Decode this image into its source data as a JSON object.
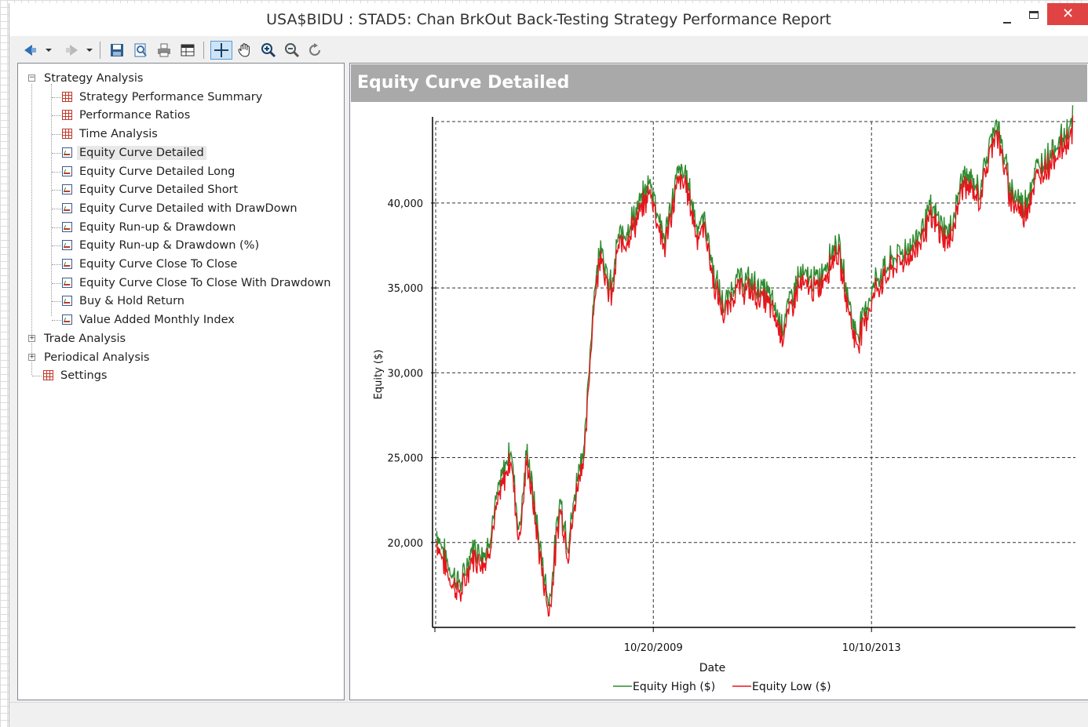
{
  "window": {
    "title": "USA$BIDU : STAD5: Chan BrkOut Back-Testing Strategy Performance Report"
  },
  "toolbar": {
    "icons": [
      "back-icon",
      "dropdown-arrow-icon",
      "forward-icon",
      "dropdown-arrow-icon",
      "save-icon",
      "print-preview-icon",
      "print-icon",
      "table-view-icon",
      "crosshair-icon",
      "pan-hand-icon",
      "zoom-in-icon",
      "zoom-out-icon",
      "reset-zoom-icon"
    ]
  },
  "tree": {
    "root": {
      "label": "Strategy Analysis",
      "expander": "−",
      "children": [
        {
          "label": "Strategy Performance Summary",
          "icon": "table-icon"
        },
        {
          "label": "Performance Ratios",
          "icon": "table-icon"
        },
        {
          "label": "Time Analysis",
          "icon": "table-icon"
        },
        {
          "label": "Equity Curve Detailed",
          "icon": "chart-icon"
        },
        {
          "label": "Equity Curve Detailed Long",
          "icon": "chart-icon"
        },
        {
          "label": "Equity Curve Detailed Short",
          "icon": "chart-icon"
        },
        {
          "label": "Equity Curve Detailed with DrawDown",
          "icon": "chart-icon"
        },
        {
          "label": "Equity Run-up & Drawdown",
          "icon": "chart-icon"
        },
        {
          "label": "Equity Run-up & Drawdown (%)",
          "icon": "chart-icon"
        },
        {
          "label": "Equity Curve Close To Close",
          "icon": "chart-icon"
        },
        {
          "label": "Equity Curve Close To Close With Drawdown",
          "icon": "chart-icon"
        },
        {
          "label": "Buy & Hold Return",
          "icon": "chart-icon"
        },
        {
          "label": "Value Added Monthly Index",
          "icon": "chart-icon"
        }
      ]
    },
    "trade_analysis": {
      "label": "Trade Analysis",
      "expander": "+"
    },
    "periodical_analysis": {
      "label": "Periodical Analysis",
      "expander": "+"
    },
    "settings": {
      "label": "Settings",
      "icon": "table-icon"
    }
  },
  "panel": {
    "header": "Equity Curve Detailed"
  },
  "chart_data": {
    "type": "line",
    "title": "",
    "xlabel": "Date",
    "ylabel": "Equity ($)",
    "ylim": [
      15000,
      44800
    ],
    "yticks": [
      20000,
      25000,
      30000,
      35000,
      40000
    ],
    "ytick_labels": [
      "20,000",
      "25,000",
      "30,000",
      "35,000",
      "40,000"
    ],
    "xticks": [
      "10/20/2009",
      "10/10/2013"
    ],
    "grid": true,
    "legend_position": "bottom",
    "colors": {
      "high": "#2e8b2e",
      "low": "#e8141b"
    },
    "series": [
      {
        "name": "Equity High ($)"
      },
      {
        "name": "Equity Low ($)"
      }
    ],
    "x_years": [
      2005.85,
      2006.1,
      2006.3,
      2006.5,
      2006.75,
      2007.0,
      2007.2,
      2007.35,
      2007.5,
      2007.75,
      2007.9,
      2008.1,
      2008.25,
      2008.45,
      2008.55,
      2008.7,
      2008.85,
      2008.95,
      2009.05,
      2009.15,
      2009.3,
      2009.5,
      2009.75,
      2010.0,
      2010.25,
      2010.4,
      2010.6,
      2010.75,
      2010.9,
      2011.1,
      2011.3,
      2011.6,
      2011.9,
      2012.15,
      2012.45,
      2012.8,
      2013.15,
      2013.5,
      2013.7,
      2013.85,
      2014.2,
      2014.55,
      2014.85,
      2015.2,
      2015.45,
      2015.75,
      2016.05,
      2016.3,
      2016.55,
      2016.8,
      2017.1,
      2017.35,
      2017.45
    ],
    "equity": [
      20300,
      18000,
      17200,
      19400,
      19100,
      23000,
      25300,
      20300,
      25100,
      19000,
      16000,
      22300,
      19600,
      24400,
      25400,
      33800,
      37700,
      35200,
      34700,
      37500,
      38100,
      39200,
      41000,
      37500,
      41500,
      41300,
      38300,
      38700,
      35500,
      33500,
      35200,
      35000,
      34300,
      32500,
      35400,
      35100,
      37500,
      31800,
      33700,
      35100,
      36500,
      37300,
      39300,
      37800,
      41400,
      40400,
      44700,
      40700,
      39500,
      41700,
      42900,
      43900,
      44600
    ]
  }
}
